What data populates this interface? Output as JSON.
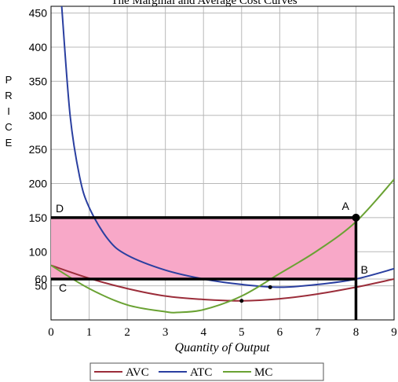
{
  "chart_data": {
    "type": "line",
    "title": "The Marginal and Average Cost Curves",
    "xlabel": "Quantity of Output",
    "ylabel": "PRICE",
    "xlim": [
      0,
      9
    ],
    "ylim": [
      0,
      460
    ],
    "xticks": [
      "0",
      "1",
      "2",
      "3",
      "4",
      "5",
      "6",
      "7",
      "8",
      "9"
    ],
    "yticks": [
      "50",
      "60",
      "100",
      "150",
      "200",
      "250",
      "300",
      "350",
      "400",
      "450"
    ],
    "grid": true,
    "legend_position": "bottom",
    "series": [
      {
        "name": "AVC",
        "color": "#9b2d3a",
        "x": [
          0,
          1,
          2,
          3,
          4,
          5,
          6,
          7,
          8,
          9
        ],
        "y": [
          80,
          61,
          46,
          35,
          30,
          28,
          31,
          38,
          48,
          60
        ]
      },
      {
        "name": "ATC",
        "color": "#2a3fa0",
        "x": [
          0.28,
          0.5,
          0.75,
          1,
          1.5,
          2,
          3,
          4,
          5,
          6,
          7,
          8,
          9
        ],
        "y": [
          460,
          300,
          210,
          165,
          118,
          95,
          73,
          60,
          52,
          48,
          52,
          60,
          75
        ]
      },
      {
        "name": "MC",
        "color": "#6aa233",
        "x": [
          0,
          1,
          2,
          3,
          3.3,
          4,
          5,
          6,
          7,
          8,
          9
        ],
        "y": [
          80,
          46,
          22,
          12,
          11,
          15,
          35,
          68,
          102,
          144,
          206
        ]
      }
    ],
    "rectangle": {
      "x": [
        0,
        8
      ],
      "y": [
        60,
        150
      ],
      "fill": "#f8a8c8"
    },
    "lines": [
      {
        "from": [
          0,
          150
        ],
        "to": [
          8,
          150
        ]
      },
      {
        "from": [
          0,
          60
        ],
        "to": [
          8,
          60
        ]
      },
      {
        "from": [
          8,
          0
        ],
        "to": [
          8,
          150
        ]
      }
    ],
    "points": [
      {
        "x": 8,
        "y": 150,
        "size": "large"
      },
      {
        "x": 5,
        "y": 28,
        "size": "small"
      },
      {
        "x": 5.75,
        "y": 48,
        "size": "small"
      }
    ],
    "annotations": [
      {
        "text": "A",
        "x": 8,
        "y": 150
      },
      {
        "text": "B",
        "x": 8,
        "y": 60
      },
      {
        "text": "C",
        "x": 0,
        "y": 60
      },
      {
        "text": "D",
        "x": 0,
        "y": 150
      }
    ]
  },
  "colors": {
    "grid": "#b8b8b8",
    "rectangle": "#f8a8c8"
  }
}
